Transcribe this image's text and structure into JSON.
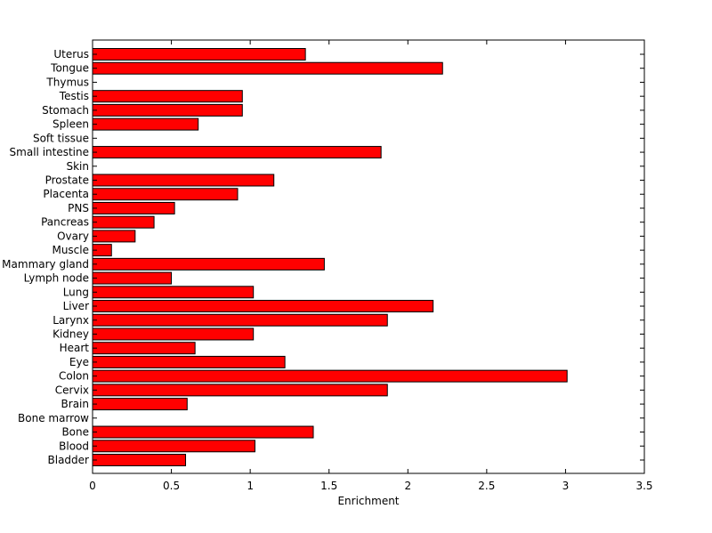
{
  "chart_data": {
    "type": "bar",
    "orientation": "horizontal",
    "categories": [
      "Bladder",
      "Blood",
      "Bone",
      "Bone marrow",
      "Brain",
      "Cervix",
      "Colon",
      "Eye",
      "Heart",
      "Kidney",
      "Larynx",
      "Liver",
      "Lung",
      "Lymph node",
      "Mammary gland",
      "Muscle",
      "Ovary",
      "Pancreas",
      "PNS",
      "Placenta",
      "Prostate",
      "Skin",
      "Small intestine",
      "Soft tissue",
      "Spleen",
      "Stomach",
      "Testis",
      "Thymus",
      "Tongue",
      "Uterus"
    ],
    "values": [
      0.59,
      1.03,
      1.4,
      0,
      0.6,
      1.87,
      3.01,
      1.22,
      0.65,
      1.02,
      1.87,
      2.16,
      1.02,
      0.5,
      1.47,
      0.12,
      0.27,
      0.39,
      0.52,
      0.92,
      1.15,
      0,
      1.83,
      0,
      0.67,
      0.95,
      0.95,
      0,
      2.22,
      1.35
    ],
    "title": "",
    "xlabel": "Enrichment",
    "ylabel": "",
    "xlim": [
      0,
      3.5
    ],
    "xticks": [
      "0",
      "0.5",
      "1",
      "1.5",
      "2",
      "2.5",
      "3",
      "3.5"
    ],
    "grid": false,
    "colors": {
      "bar_fill": "#ff0000",
      "bar_edge": "#000000",
      "axes": "#000000"
    }
  }
}
